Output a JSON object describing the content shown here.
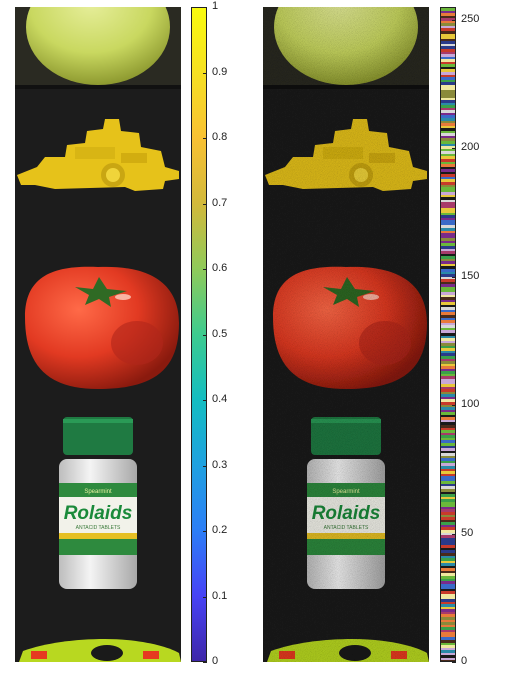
{
  "left_colorbar": {
    "ticks": [
      "0",
      "0.1",
      "0.2",
      "0.3",
      "0.4",
      "0.5",
      "0.6",
      "0.7",
      "0.8",
      "0.9",
      "1"
    ],
    "range": [
      0,
      1
    ],
    "colormap": "parula",
    "colors": [
      "#3e26a8",
      "#4743f6",
      "#2c7ef6",
      "#1fa1e0",
      "#13bdc1",
      "#3dcb8f",
      "#8fca5a",
      "#d2b93b",
      "#f8c133",
      "#f6e022",
      "#f9fb0e"
    ]
  },
  "right_colorbar": {
    "ticks": [
      "0",
      "50",
      "100",
      "150",
      "200",
      "250"
    ],
    "range": [
      0,
      255
    ],
    "colormap": "random-indexed",
    "bands": 256
  },
  "images": {
    "rows": [
      "apple",
      "toy-boat",
      "tomato",
      "rolaids-bottle",
      "toy-car"
    ],
    "bottle_label": {
      "brand": "Rolaids",
      "top_text": "Spearmint",
      "sub_text": "ANTACID TABLETS"
    }
  }
}
